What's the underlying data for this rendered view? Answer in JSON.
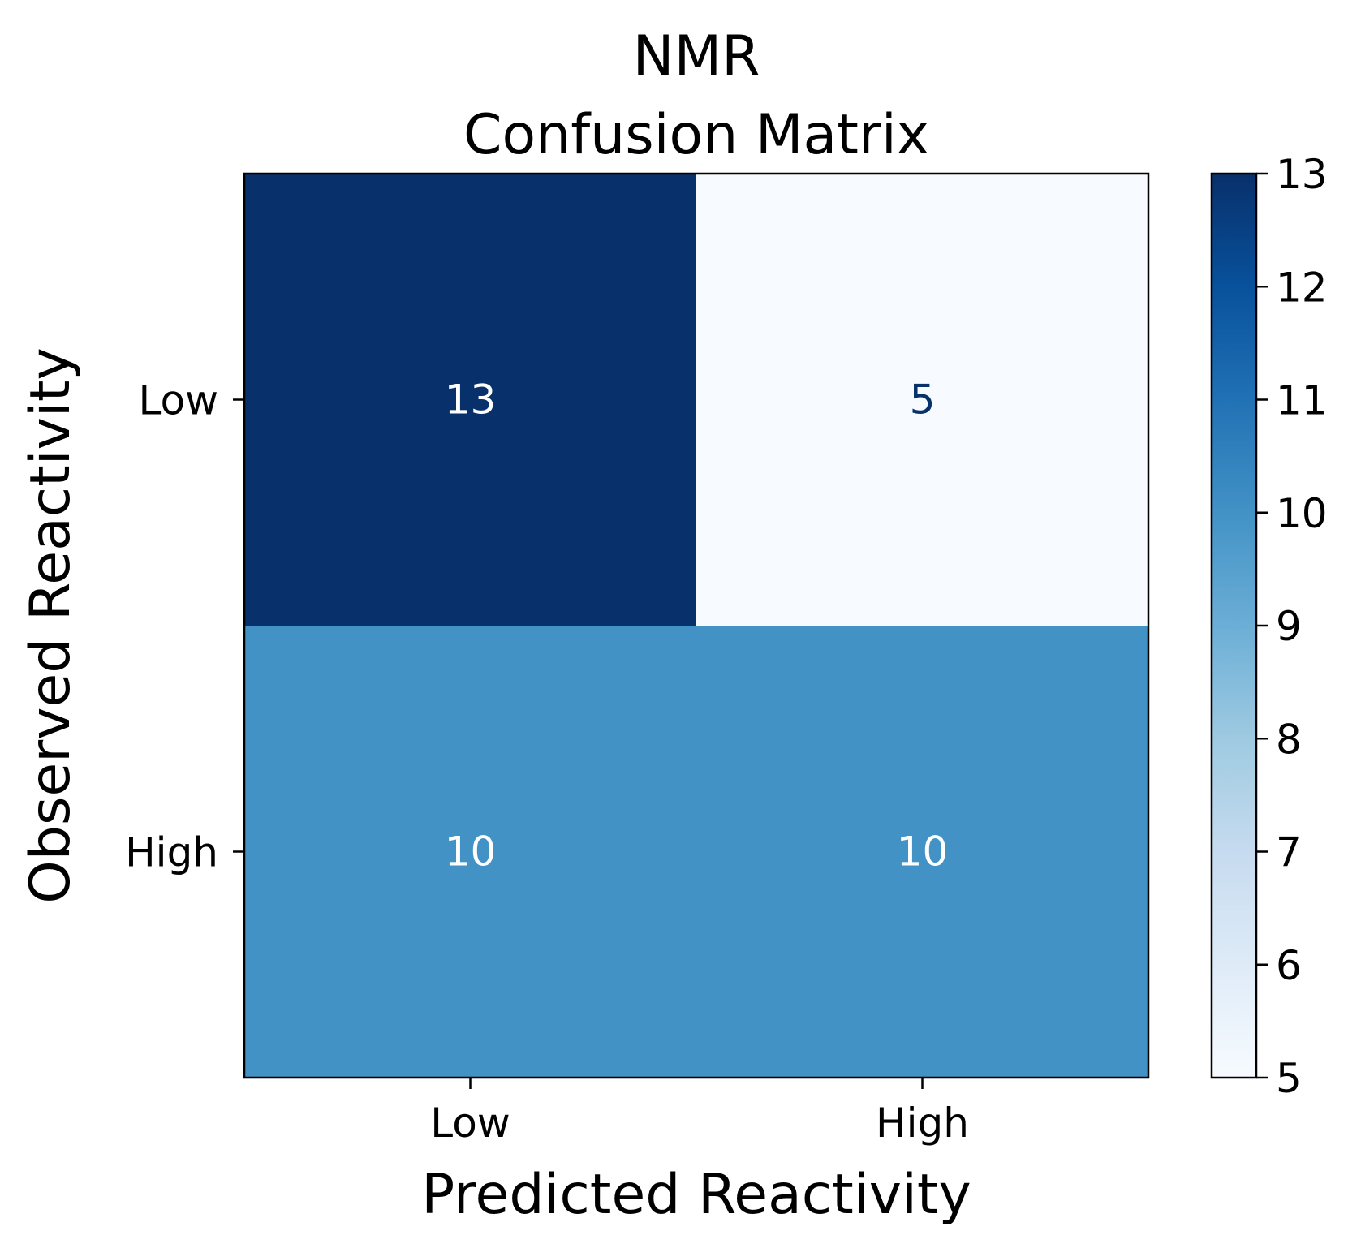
{
  "chart_data": {
    "type": "heatmap",
    "title_lines": [
      "NMR",
      "Confusion Matrix"
    ],
    "xlabel": "Predicted Reactivity",
    "ylabel": "Observed Reactivity",
    "x_categories": [
      "Low",
      "High"
    ],
    "y_categories": [
      "Low",
      "High"
    ],
    "values": [
      [
        13,
        5
      ],
      [
        10,
        10
      ]
    ],
    "colorbar": {
      "colormap": "Blues",
      "range": [
        5,
        13
      ],
      "ticks": [
        5,
        6,
        7,
        8,
        9,
        10,
        11,
        12,
        13
      ]
    },
    "colors": {
      "cell_13": "#08306b",
      "cell_10": "#4292c6",
      "cell_5": "#f7fbff",
      "text_on_dark": "#ffffff",
      "text_on_light": "#08306b"
    },
    "grid": false
  }
}
